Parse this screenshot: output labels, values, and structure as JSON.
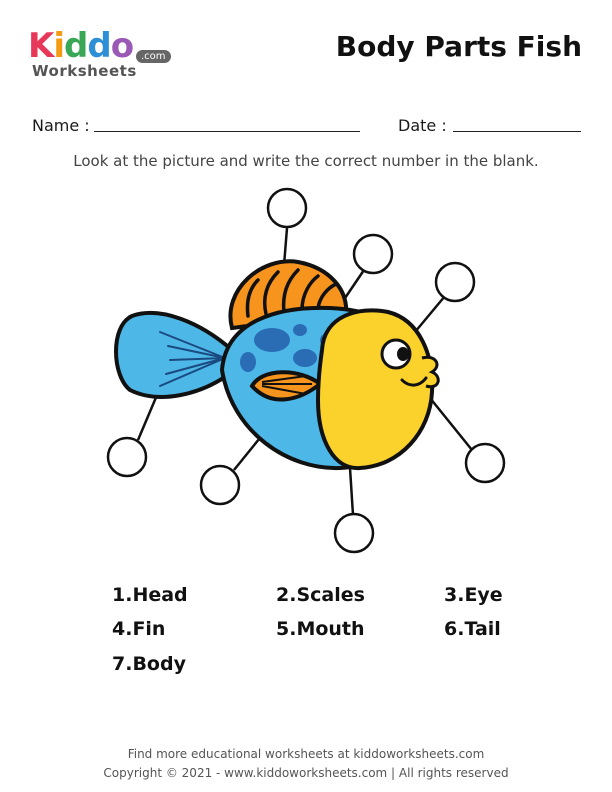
{
  "logo": {
    "brand_letters": [
      "K",
      "i",
      "d",
      "d",
      "o"
    ],
    "brand_colors": [
      "#e8385a",
      "#f39c12",
      "#3aa757",
      "#2d8fd5",
      "#9b59b6"
    ],
    "subtitle": "Worksheets",
    "domain_badge": ".com"
  },
  "title": "Body Parts Fish",
  "form": {
    "name_label": "Name :",
    "date_label": "Date :"
  },
  "instruction": "Look at the picture and write the correct number in the blank.",
  "options": [
    {
      "label": "1.Head"
    },
    {
      "label": "2.Scales"
    },
    {
      "label": "3.Eye"
    },
    {
      "label": "4.Fin"
    },
    {
      "label": "5.Mouth"
    },
    {
      "label": "6.Tail"
    },
    {
      "label": "7.Body"
    }
  ],
  "colors": {
    "fish_body_blue": "#4db8e8",
    "fish_head_yellow": "#fbd12b",
    "fin_orange": "#f7941d",
    "spots_dark_blue": "#2a6db5"
  },
  "footer": {
    "line1": "Find more educational worksheets at kiddoworksheets.com",
    "line2": "Copyright © 2021 - www.kiddoworksheets.com  |  All rights reserved"
  }
}
